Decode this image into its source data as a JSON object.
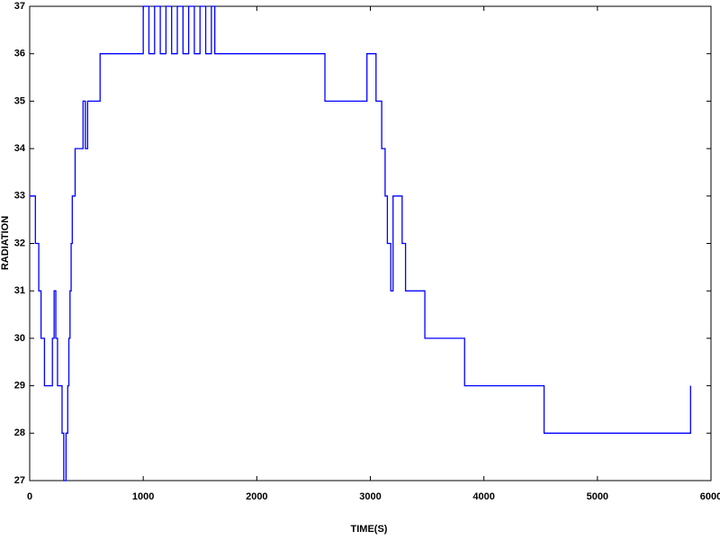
{
  "chart_data": {
    "type": "line",
    "x_label": "TIME(S)",
    "y_label": "RADIATION",
    "xlim": [
      0,
      6000
    ],
    "xticks": [
      0,
      1000,
      2000,
      3000,
      4000,
      5000,
      6000
    ],
    "ylim": [
      27,
      37
    ],
    "yticks": [
      27,
      28,
      29,
      30,
      31,
      32,
      33,
      34,
      35,
      36,
      37
    ],
    "grid": false,
    "series": [
      {
        "color": "#0000ff",
        "x": [
          0,
          50,
          50,
          80,
          80,
          100,
          100,
          130,
          130,
          200,
          200,
          215,
          215,
          230,
          230,
          245,
          245,
          285,
          285,
          300,
          300,
          320,
          320,
          335,
          335,
          345,
          345,
          355,
          355,
          365,
          365,
          375,
          375,
          400,
          400,
          470,
          470,
          490,
          490,
          510,
          510,
          620,
          620,
          1000,
          1000,
          1050,
          1050,
          1100,
          1100,
          1150,
          1150,
          1200,
          1200,
          1250,
          1250,
          1300,
          1300,
          1350,
          1350,
          1400,
          1400,
          1450,
          1450,
          1500,
          1500,
          1550,
          1550,
          1600,
          1600,
          1630,
          1630,
          2600,
          2600,
          2970,
          2970,
          3050,
          3050,
          3100,
          3100,
          3130,
          3130,
          3150,
          3150,
          3180,
          3180,
          3200,
          3200,
          3280,
          3280,
          3310,
          3310,
          3480,
          3480,
          3830,
          3830,
          4530,
          4530,
          5820,
          5820
        ],
        "values": [
          33,
          33,
          32,
          32,
          31,
          31,
          30,
          30,
          29,
          29,
          30,
          30,
          31,
          31,
          30,
          30,
          29,
          29,
          28,
          28,
          27,
          27,
          28,
          28,
          29,
          29,
          30,
          30,
          31,
          31,
          32,
          32,
          33,
          33,
          34,
          34,
          35,
          35,
          34,
          34,
          35,
          35,
          36,
          36,
          37,
          37,
          36,
          36,
          37,
          37,
          36,
          36,
          37,
          37,
          36,
          36,
          37,
          37,
          36,
          36,
          37,
          37,
          36,
          36,
          37,
          37,
          36,
          36,
          37,
          37,
          36,
          36,
          35,
          35,
          36,
          36,
          35,
          35,
          34,
          34,
          33,
          33,
          32,
          32,
          31,
          31,
          33,
          33,
          32,
          32,
          31,
          31,
          30,
          30,
          29,
          29,
          28,
          28,
          29
        ]
      }
    ]
  }
}
